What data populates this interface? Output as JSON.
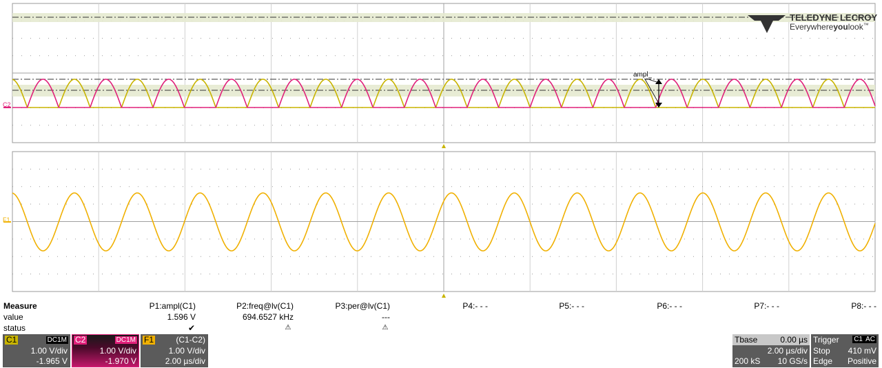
{
  "logo": {
    "brand": "TELEDYNE LECROY",
    "tagline_pre": "Everywhere",
    "tagline_bold": "you",
    "tagline_post": "look",
    "tm": "™"
  },
  "traces": {
    "c2_label": "C2",
    "f1_label": "F1",
    "cursor_label": "ampl"
  },
  "colors": {
    "c1": "#c8b400",
    "c2": "#e0207a",
    "f1": "#f0b000",
    "grid": "#c0c0c0"
  },
  "measure": {
    "title": "Measure",
    "row_value": "value",
    "row_status": "status",
    "params": [
      {
        "name": "P1:ampl(C1)",
        "value": "1.596 V",
        "status": "✔"
      },
      {
        "name": "P2:freq@lv(C1)",
        "value": "694.6527 kHz",
        "status": "⚠"
      },
      {
        "name": "P3:per@lv(C1)",
        "value": "---",
        "status": "⚠"
      },
      {
        "name": "P4:- - -",
        "value": "",
        "status": ""
      },
      {
        "name": "P5:- - -",
        "value": "",
        "status": ""
      },
      {
        "name": "P6:- - -",
        "value": "",
        "status": ""
      },
      {
        "name": "P7:- - -",
        "value": "",
        "status": ""
      },
      {
        "name": "P8:- - -",
        "value": "",
        "status": ""
      }
    ]
  },
  "channels": {
    "c1": {
      "label": "C1",
      "coupling": "DC1M",
      "scale": "1.00 V/div",
      "offset": "-1.965 V"
    },
    "c2": {
      "label": "C2",
      "coupling": "DC1M",
      "scale": "1.00 V/div",
      "offset": "-1.970 V"
    },
    "f1": {
      "label": "F1",
      "func": "(C1-C2)",
      "scale": "1.00 V/div",
      "timebase": "2.00 µs/div"
    }
  },
  "timebase": {
    "label": "Tbase",
    "delay": "0.00 µs",
    "per_div": "2.00 µs/div",
    "samples": "200 kS",
    "rate": "10 GS/s"
  },
  "trigger": {
    "label": "Trigger",
    "source": "C1",
    "coupling": "AC",
    "mode": "Stop",
    "level": "410 mV",
    "type": "Edge",
    "slope": "Positive"
  }
}
